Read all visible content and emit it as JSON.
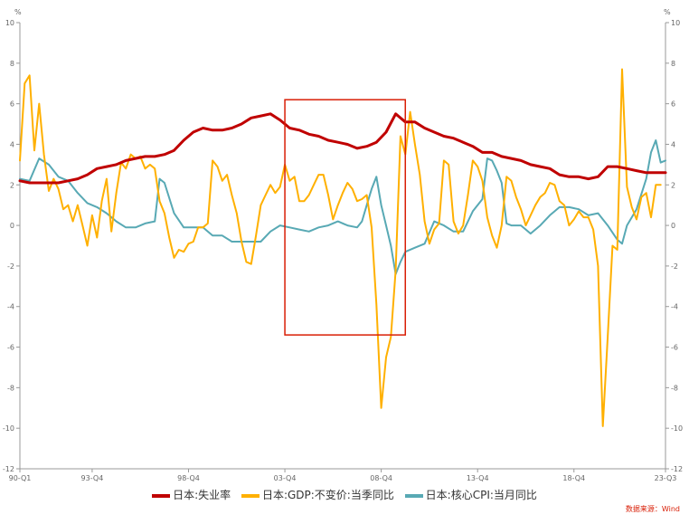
{
  "chart_data": {
    "type": "line",
    "y_unit_left": "%",
    "y_unit_right": "%",
    "ylim": [
      -12,
      10
    ],
    "y_ticks": [
      -12,
      -10,
      -8,
      -6,
      -4,
      -2,
      0,
      2,
      4,
      6,
      8,
      10
    ],
    "x_range": [
      1990.0,
      2023.5
    ],
    "x_ticks": [
      {
        "label": "90-Q1",
        "t": 1990.0
      },
      {
        "label": "93-Q4",
        "t": 1993.75
      },
      {
        "label": "98-Q4",
        "t": 1998.75
      },
      {
        "label": "03-Q4",
        "t": 2003.75
      },
      {
        "label": "08-Q4",
        "t": 2008.75
      },
      {
        "label": "13-Q4",
        "t": 2013.75
      },
      {
        "label": "18-Q4",
        "t": 2018.75
      },
      {
        "label": "23-Q3",
        "t": 2023.5
      }
    ],
    "grid": false,
    "legend_position": "bottom",
    "highlight_box": {
      "x_start": 2003.75,
      "x_end": 2010.0,
      "y_top": 6.2,
      "y_bottom": -5.4,
      "color": "#d81e06"
    },
    "source": "数据来源：Wind",
    "series": [
      {
        "name": "日本:失业率",
        "color": "#c00000",
        "width": 3,
        "points": [
          [
            1990.0,
            2.2
          ],
          [
            1990.5,
            2.1
          ],
          [
            1991.0,
            2.1
          ],
          [
            1991.5,
            2.1
          ],
          [
            1992.0,
            2.1
          ],
          [
            1992.5,
            2.2
          ],
          [
            1993.0,
            2.3
          ],
          [
            1993.5,
            2.5
          ],
          [
            1994.0,
            2.8
          ],
          [
            1994.5,
            2.9
          ],
          [
            1995.0,
            3.0
          ],
          [
            1995.5,
            3.2
          ],
          [
            1996.0,
            3.3
          ],
          [
            1996.5,
            3.4
          ],
          [
            1997.0,
            3.4
          ],
          [
            1997.5,
            3.5
          ],
          [
            1998.0,
            3.7
          ],
          [
            1998.5,
            4.2
          ],
          [
            1999.0,
            4.6
          ],
          [
            1999.5,
            4.8
          ],
          [
            2000.0,
            4.7
          ],
          [
            2000.5,
            4.7
          ],
          [
            2001.0,
            4.8
          ],
          [
            2001.5,
            5.0
          ],
          [
            2002.0,
            5.3
          ],
          [
            2002.5,
            5.4
          ],
          [
            2003.0,
            5.5
          ],
          [
            2003.5,
            5.2
          ],
          [
            2004.0,
            4.8
          ],
          [
            2004.5,
            4.7
          ],
          [
            2005.0,
            4.5
          ],
          [
            2005.5,
            4.4
          ],
          [
            2006.0,
            4.2
          ],
          [
            2006.5,
            4.1
          ],
          [
            2007.0,
            4.0
          ],
          [
            2007.5,
            3.8
          ],
          [
            2008.0,
            3.9
          ],
          [
            2008.5,
            4.1
          ],
          [
            2009.0,
            4.6
          ],
          [
            2009.5,
            5.5
          ],
          [
            2010.0,
            5.1
          ],
          [
            2010.5,
            5.1
          ],
          [
            2011.0,
            4.8
          ],
          [
            2011.5,
            4.6
          ],
          [
            2012.0,
            4.4
          ],
          [
            2012.5,
            4.3
          ],
          [
            2013.0,
            4.1
          ],
          [
            2013.5,
            3.9
          ],
          [
            2014.0,
            3.6
          ],
          [
            2014.5,
            3.6
          ],
          [
            2015.0,
            3.4
          ],
          [
            2015.5,
            3.3
          ],
          [
            2016.0,
            3.2
          ],
          [
            2016.5,
            3.0
          ],
          [
            2017.0,
            2.9
          ],
          [
            2017.5,
            2.8
          ],
          [
            2018.0,
            2.5
          ],
          [
            2018.5,
            2.4
          ],
          [
            2019.0,
            2.4
          ],
          [
            2019.5,
            2.3
          ],
          [
            2020.0,
            2.4
          ],
          [
            2020.5,
            2.9
          ],
          [
            2021.0,
            2.9
          ],
          [
            2021.5,
            2.8
          ],
          [
            2022.0,
            2.7
          ],
          [
            2022.5,
            2.6
          ],
          [
            2023.0,
            2.6
          ],
          [
            2023.5,
            2.6
          ]
        ]
      },
      {
        "name": "日本:GDP:不变价:当季同比",
        "color": "#ffb000",
        "width": 2,
        "points": [
          [
            1990.0,
            3.2
          ],
          [
            1990.25,
            7.0
          ],
          [
            1990.5,
            7.4
          ],
          [
            1990.75,
            3.7
          ],
          [
            1991.0,
            6.0
          ],
          [
            1991.25,
            3.5
          ],
          [
            1991.5,
            1.7
          ],
          [
            1991.75,
            2.3
          ],
          [
            1992.0,
            1.8
          ],
          [
            1992.25,
            0.8
          ],
          [
            1992.5,
            1.0
          ],
          [
            1992.75,
            0.2
          ],
          [
            1993.0,
            1.0
          ],
          [
            1993.25,
            0.0
          ],
          [
            1993.5,
            -1.0
          ],
          [
            1993.75,
            0.5
          ],
          [
            1994.0,
            -0.6
          ],
          [
            1994.25,
            1.2
          ],
          [
            1994.5,
            2.3
          ],
          [
            1994.75,
            -0.3
          ],
          [
            1995.0,
            1.6
          ],
          [
            1995.25,
            3.1
          ],
          [
            1995.5,
            2.8
          ],
          [
            1995.75,
            3.5
          ],
          [
            1996.0,
            3.3
          ],
          [
            1996.25,
            3.4
          ],
          [
            1996.5,
            2.8
          ],
          [
            1996.75,
            3.0
          ],
          [
            1997.0,
            2.8
          ],
          [
            1997.25,
            1.2
          ],
          [
            1997.5,
            0.6
          ],
          [
            1997.75,
            -0.6
          ],
          [
            1998.0,
            -1.6
          ],
          [
            1998.25,
            -1.2
          ],
          [
            1998.5,
            -1.3
          ],
          [
            1998.75,
            -0.9
          ],
          [
            1999.0,
            -0.8
          ],
          [
            1999.25,
            -0.1
          ],
          [
            1999.5,
            -0.1
          ],
          [
            1999.75,
            0.1
          ],
          [
            2000.0,
            3.2
          ],
          [
            2000.25,
            2.9
          ],
          [
            2000.5,
            2.2
          ],
          [
            2000.75,
            2.5
          ],
          [
            2001.0,
            1.5
          ],
          [
            2001.25,
            0.6
          ],
          [
            2001.5,
            -0.8
          ],
          [
            2001.75,
            -1.8
          ],
          [
            2002.0,
            -1.9
          ],
          [
            2002.25,
            -0.5
          ],
          [
            2002.5,
            1.0
          ],
          [
            2002.75,
            1.5
          ],
          [
            2003.0,
            2.0
          ],
          [
            2003.25,
            1.6
          ],
          [
            2003.5,
            1.9
          ],
          [
            2003.75,
            3.0
          ],
          [
            2004.0,
            2.2
          ],
          [
            2004.25,
            2.4
          ],
          [
            2004.5,
            1.2
          ],
          [
            2004.75,
            1.2
          ],
          [
            2005.0,
            1.5
          ],
          [
            2005.25,
            2.0
          ],
          [
            2005.5,
            2.5
          ],
          [
            2005.75,
            2.5
          ],
          [
            2006.0,
            1.5
          ],
          [
            2006.25,
            0.3
          ],
          [
            2006.5,
            1.0
          ],
          [
            2006.75,
            1.6
          ],
          [
            2007.0,
            2.1
          ],
          [
            2007.25,
            1.8
          ],
          [
            2007.5,
            1.2
          ],
          [
            2007.75,
            1.3
          ],
          [
            2008.0,
            1.5
          ],
          [
            2008.25,
            -0.1
          ],
          [
            2008.5,
            -3.9
          ],
          [
            2008.75,
            -9.0
          ],
          [
            2009.0,
            -6.5
          ],
          [
            2009.25,
            -5.5
          ],
          [
            2009.5,
            -2.2
          ],
          [
            2009.75,
            4.4
          ],
          [
            2010.0,
            3.5
          ],
          [
            2010.25,
            5.6
          ],
          [
            2010.5,
            4.0
          ],
          [
            2010.75,
            2.5
          ],
          [
            2011.0,
            0.2
          ],
          [
            2011.25,
            -0.9
          ],
          [
            2011.5,
            -0.2
          ],
          [
            2011.75,
            0.1
          ],
          [
            2012.0,
            3.2
          ],
          [
            2012.25,
            3.0
          ],
          [
            2012.5,
            0.2
          ],
          [
            2012.75,
            -0.4
          ],
          [
            2013.0,
            0.0
          ],
          [
            2013.25,
            1.5
          ],
          [
            2013.5,
            3.2
          ],
          [
            2013.75,
            2.9
          ],
          [
            2014.0,
            2.2
          ],
          [
            2014.25,
            0.4
          ],
          [
            2014.5,
            -0.5
          ],
          [
            2014.75,
            -1.1
          ],
          [
            2015.0,
            0.0
          ],
          [
            2015.25,
            2.4
          ],
          [
            2015.5,
            2.2
          ],
          [
            2015.75,
            1.4
          ],
          [
            2016.0,
            0.8
          ],
          [
            2016.25,
            0.0
          ],
          [
            2016.5,
            0.5
          ],
          [
            2016.75,
            1.0
          ],
          [
            2017.0,
            1.4
          ],
          [
            2017.25,
            1.6
          ],
          [
            2017.5,
            2.1
          ],
          [
            2017.75,
            2.0
          ],
          [
            2018.0,
            1.2
          ],
          [
            2018.25,
            1.0
          ],
          [
            2018.5,
            0.0
          ],
          [
            2018.75,
            0.3
          ],
          [
            2019.0,
            0.7
          ],
          [
            2019.25,
            0.4
          ],
          [
            2019.5,
            0.4
          ],
          [
            2019.75,
            -0.2
          ],
          [
            2020.0,
            -2.0
          ],
          [
            2020.25,
            -9.9
          ],
          [
            2020.5,
            -5.5
          ],
          [
            2020.75,
            -1.0
          ],
          [
            2021.0,
            -1.2
          ],
          [
            2021.25,
            7.7
          ],
          [
            2021.5,
            1.9
          ],
          [
            2021.75,
            0.9
          ],
          [
            2022.0,
            0.3
          ],
          [
            2022.25,
            1.4
          ],
          [
            2022.5,
            1.6
          ],
          [
            2022.75,
            0.4
          ],
          [
            2023.0,
            2.0
          ],
          [
            2023.25,
            2.0
          ]
        ]
      },
      {
        "name": "日本:核心CPI:当月同比",
        "color": "#58a9b4",
        "width": 2,
        "points": [
          [
            1990.0,
            2.3
          ],
          [
            1990.5,
            2.2
          ],
          [
            1991.0,
            3.3
          ],
          [
            1991.5,
            3.0
          ],
          [
            1992.0,
            2.4
          ],
          [
            1992.5,
            2.2
          ],
          [
            1993.0,
            1.6
          ],
          [
            1993.5,
            1.1
          ],
          [
            1994.0,
            0.9
          ],
          [
            1994.5,
            0.6
          ],
          [
            1995.0,
            0.2
          ],
          [
            1995.5,
            -0.1
          ],
          [
            1996.0,
            -0.1
          ],
          [
            1996.5,
            0.1
          ],
          [
            1997.0,
            0.2
          ],
          [
            1997.25,
            2.3
          ],
          [
            1997.5,
            2.1
          ],
          [
            1998.0,
            0.6
          ],
          [
            1998.5,
            -0.1
          ],
          [
            1999.0,
            -0.1
          ],
          [
            1999.5,
            -0.1
          ],
          [
            2000.0,
            -0.5
          ],
          [
            2000.5,
            -0.5
          ],
          [
            2001.0,
            -0.8
          ],
          [
            2001.5,
            -0.8
          ],
          [
            2002.0,
            -0.8
          ],
          [
            2002.5,
            -0.8
          ],
          [
            2003.0,
            -0.3
          ],
          [
            2003.5,
            0.0
          ],
          [
            2004.0,
            -0.1
          ],
          [
            2004.5,
            -0.2
          ],
          [
            2005.0,
            -0.3
          ],
          [
            2005.5,
            -0.1
          ],
          [
            2006.0,
            0.0
          ],
          [
            2006.5,
            0.2
          ],
          [
            2007.0,
            0.0
          ],
          [
            2007.5,
            -0.1
          ],
          [
            2007.75,
            0.2
          ],
          [
            2008.0,
            1.0
          ],
          [
            2008.25,
            1.8
          ],
          [
            2008.5,
            2.4
          ],
          [
            2008.75,
            1.0
          ],
          [
            2009.0,
            0.0
          ],
          [
            2009.25,
            -1.0
          ],
          [
            2009.5,
            -2.4
          ],
          [
            2009.75,
            -1.8
          ],
          [
            2010.0,
            -1.3
          ],
          [
            2010.5,
            -1.1
          ],
          [
            2011.0,
            -0.9
          ],
          [
            2011.5,
            0.2
          ],
          [
            2012.0,
            0.0
          ],
          [
            2012.5,
            -0.3
          ],
          [
            2013.0,
            -0.3
          ],
          [
            2013.5,
            0.7
          ],
          [
            2014.0,
            1.3
          ],
          [
            2014.25,
            3.3
          ],
          [
            2014.5,
            3.2
          ],
          [
            2014.75,
            2.7
          ],
          [
            2015.0,
            2.1
          ],
          [
            2015.25,
            0.1
          ],
          [
            2015.5,
            0.0
          ],
          [
            2016.0,
            0.0
          ],
          [
            2016.5,
            -0.4
          ],
          [
            2017.0,
            0.0
          ],
          [
            2017.5,
            0.5
          ],
          [
            2018.0,
            0.9
          ],
          [
            2018.5,
            0.9
          ],
          [
            2019.0,
            0.8
          ],
          [
            2019.5,
            0.5
          ],
          [
            2020.0,
            0.6
          ],
          [
            2020.5,
            0.0
          ],
          [
            2021.0,
            -0.7
          ],
          [
            2021.25,
            -0.9
          ],
          [
            2021.5,
            0.0
          ],
          [
            2022.0,
            0.8
          ],
          [
            2022.5,
            2.3
          ],
          [
            2022.75,
            3.6
          ],
          [
            2023.0,
            4.2
          ],
          [
            2023.25,
            3.1
          ],
          [
            2023.5,
            3.2
          ]
        ]
      }
    ]
  }
}
